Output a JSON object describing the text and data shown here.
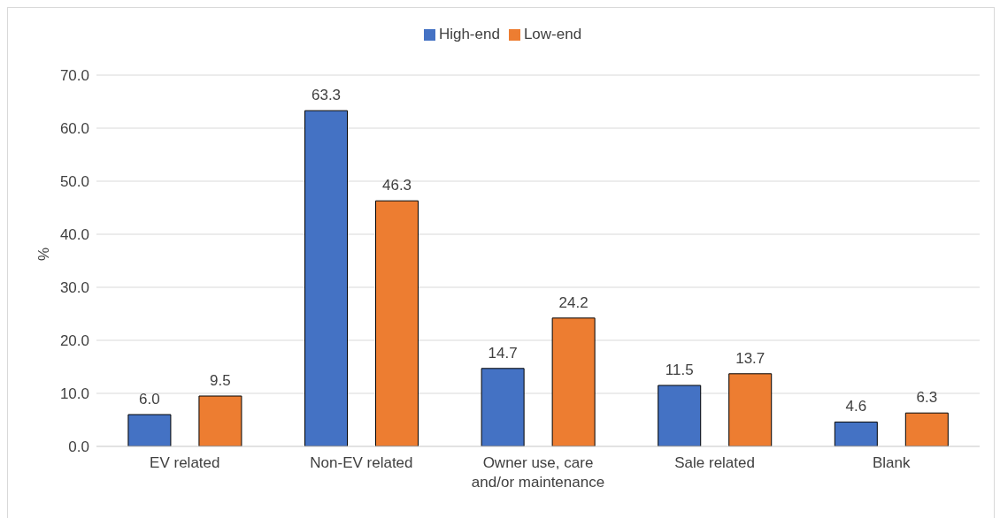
{
  "chart_data": {
    "type": "bar",
    "categories": [
      "EV related",
      "Non-EV related",
      "Owner use, care and/or maintenance",
      "Sale related",
      "Blank"
    ],
    "ylabel": "%",
    "series": [
      {
        "name": "High-end",
        "color": "#4472c4",
        "values": [
          6.0,
          63.3,
          14.7,
          11.5,
          4.6
        ],
        "value_labels": [
          "6.0",
          "63.3",
          "14.7",
          "11.5",
          "4.6"
        ]
      },
      {
        "name": "Low-end",
        "color": "#ed7d31",
        "values": [
          9.5,
          46.3,
          24.2,
          13.7,
          6.3
        ],
        "value_labels": [
          "9.5",
          "46.3",
          "24.2",
          "13.7",
          "6.3"
        ]
      }
    ],
    "ylim": [
      0,
      70
    ],
    "yticks": [
      {
        "value": 0,
        "label": "0.0"
      },
      {
        "value": 10,
        "label": "10.0"
      },
      {
        "value": 20,
        "label": "20.0"
      },
      {
        "value": 30,
        "label": "30.0"
      },
      {
        "value": 40,
        "label": "40.0"
      },
      {
        "value": 50,
        "label": "50.0"
      },
      {
        "value": 60,
        "label": "60.0"
      },
      {
        "value": 70,
        "label": "70.0"
      }
    ],
    "grid": "y",
    "legend": "top"
  }
}
